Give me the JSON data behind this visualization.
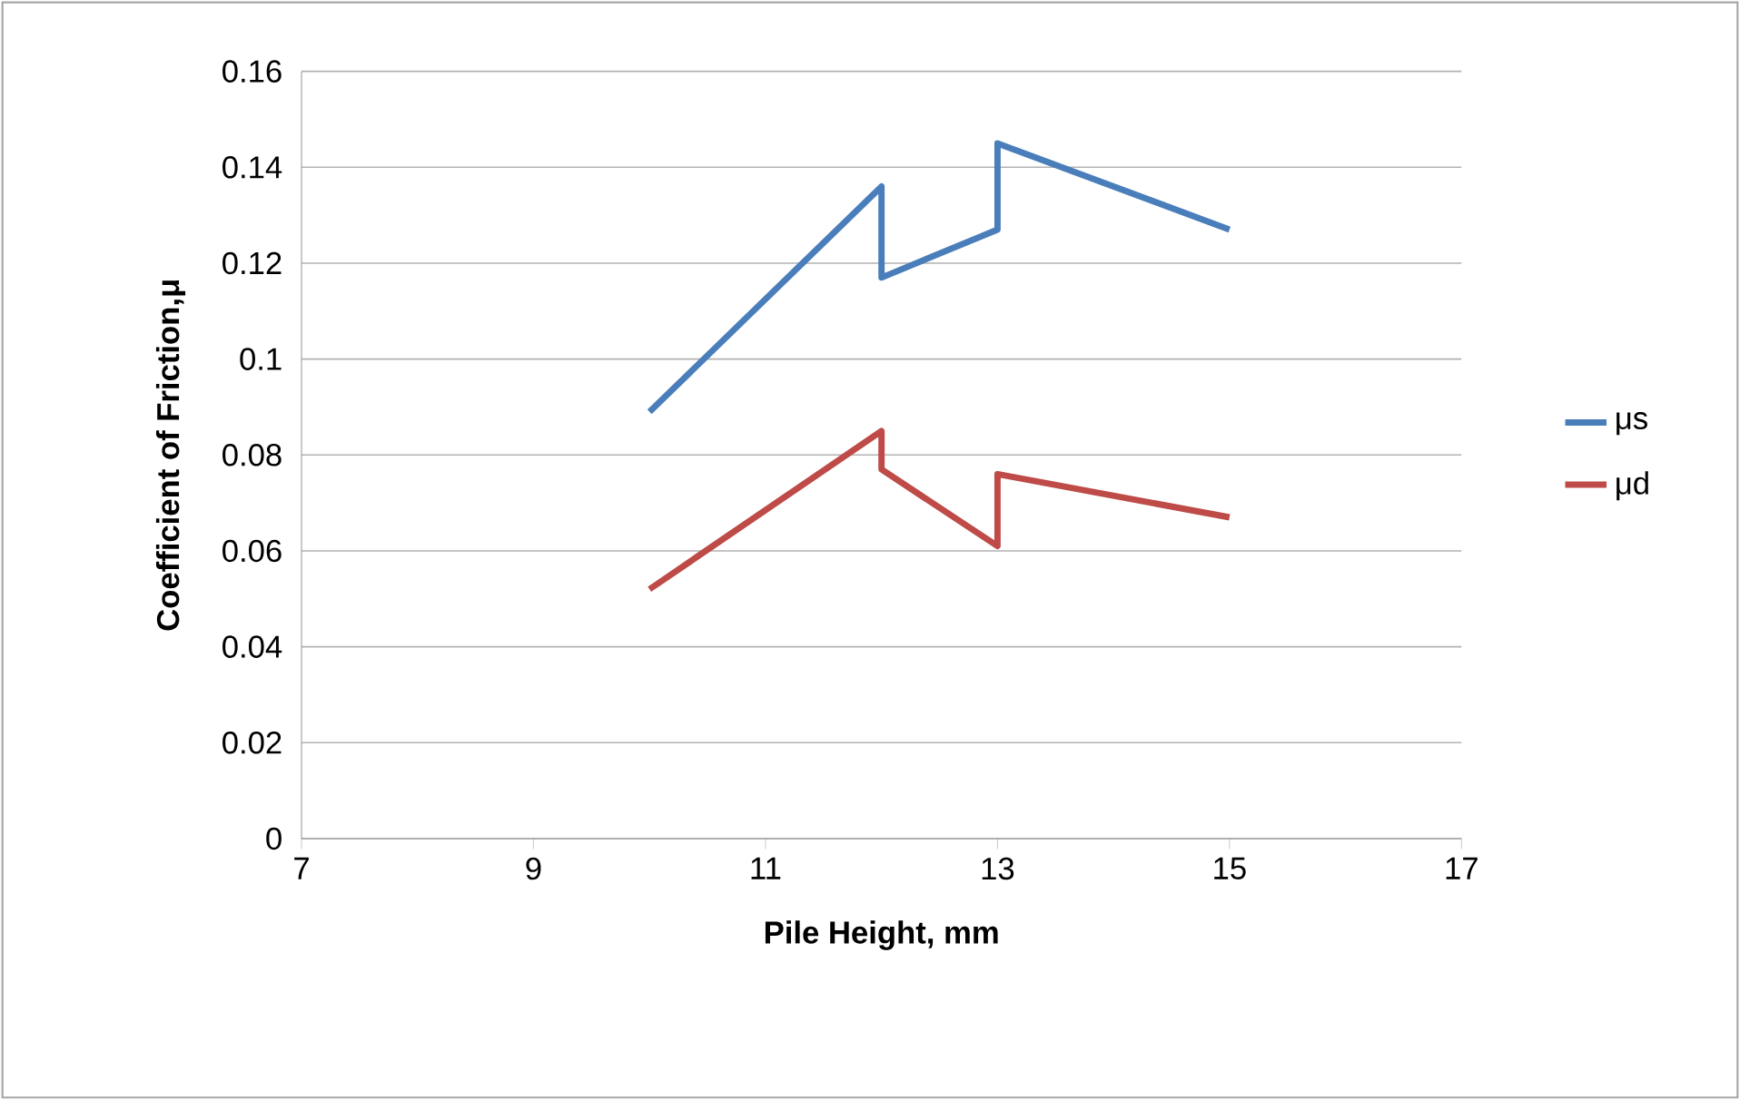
{
  "chart_data": {
    "type": "line",
    "xlabel": "Pile Height, mm",
    "ylabel": "Coefficient of Friction,μ",
    "xlim": [
      7,
      17
    ],
    "xticks": [
      7,
      9,
      11,
      13,
      15,
      17
    ],
    "ylim": [
      0,
      0.16
    ],
    "yticks": [
      0,
      0.02,
      0.04,
      0.06,
      0.08,
      0.1,
      0.12,
      0.14,
      0.16
    ],
    "grid": "y",
    "legend": "right",
    "marker": "none",
    "line_style": "solid",
    "series": [
      {
        "name": "μs",
        "color": "#4a7ebb",
        "x": [
          10,
          12,
          12,
          13,
          13,
          15
        ],
        "values": [
          0.089,
          0.136,
          0.117,
          0.127,
          0.145,
          0.127
        ]
      },
      {
        "name": "μd",
        "color": "#be4b48",
        "x": [
          10,
          12,
          12,
          13,
          13,
          15
        ],
        "values": [
          0.052,
          0.085,
          0.077,
          0.061,
          0.076,
          0.067
        ]
      }
    ]
  }
}
